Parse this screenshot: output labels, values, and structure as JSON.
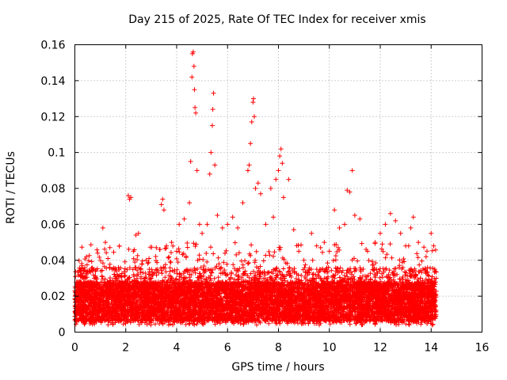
{
  "chart_data": {
    "type": "scatter",
    "title": "Day 215 of 2025, Rate Of TEC Index for receiver xmis",
    "xlabel": "GPS time / hours",
    "ylabel": "ROTI / TECUs",
    "xlim": [
      0,
      16
    ],
    "ylim": [
      0,
      0.16
    ],
    "x_ticks": [
      "0",
      "2",
      "4",
      "6",
      "8",
      "10",
      "12",
      "14",
      "16"
    ],
    "y_ticks": [
      "0",
      "0.02",
      "0.04",
      "0.06",
      "0.08",
      "0.1",
      "0.12",
      "0.14",
      "0.16"
    ],
    "grid": true,
    "marker": "+",
    "series_color": "#ff0000",
    "series": [
      {
        "name": "ROTI",
        "points": [
          [
            0.1,
            0.012
          ],
          [
            0.2,
            0.018
          ],
          [
            0.3,
            0.025
          ],
          [
            0.4,
            0.014
          ],
          [
            0.5,
            0.02
          ],
          [
            0.6,
            0.016
          ],
          [
            0.8,
            0.022
          ],
          [
            1.0,
            0.015
          ],
          [
            1.1,
            0.058
          ],
          [
            1.2,
            0.05
          ],
          [
            1.3,
            0.041
          ],
          [
            1.4,
            0.028
          ],
          [
            1.6,
            0.03
          ],
          [
            1.8,
            0.019
          ],
          [
            2.0,
            0.024
          ],
          [
            2.1,
            0.076
          ],
          [
            2.15,
            0.074
          ],
          [
            2.2,
            0.075
          ],
          [
            2.3,
            0.045
          ],
          [
            2.4,
            0.054
          ],
          [
            2.5,
            0.055
          ],
          [
            2.6,
            0.035
          ],
          [
            2.8,
            0.04
          ],
          [
            3.0,
            0.03
          ],
          [
            3.2,
            0.047
          ],
          [
            3.4,
            0.071
          ],
          [
            3.45,
            0.074
          ],
          [
            3.5,
            0.068
          ],
          [
            3.6,
            0.048
          ],
          [
            3.8,
            0.05
          ],
          [
            4.0,
            0.045
          ],
          [
            4.1,
            0.06
          ],
          [
            4.3,
            0.063
          ],
          [
            4.5,
            0.072
          ],
          [
            4.55,
            0.095
          ],
          [
            4.6,
            0.142
          ],
          [
            4.62,
            0.155
          ],
          [
            4.65,
            0.156
          ],
          [
            4.68,
            0.148
          ],
          [
            4.7,
            0.135
          ],
          [
            4.72,
            0.125
          ],
          [
            4.75,
            0.122
          ],
          [
            4.8,
            0.09
          ],
          [
            4.9,
            0.06
          ],
          [
            5.0,
            0.055
          ],
          [
            5.2,
            0.06
          ],
          [
            5.3,
            0.088
          ],
          [
            5.35,
            0.1
          ],
          [
            5.4,
            0.115
          ],
          [
            5.42,
            0.124
          ],
          [
            5.45,
            0.133
          ],
          [
            5.5,
            0.093
          ],
          [
            5.6,
            0.065
          ],
          [
            5.8,
            0.058
          ],
          [
            6.0,
            0.06
          ],
          [
            6.2,
            0.064
          ],
          [
            6.4,
            0.058
          ],
          [
            6.6,
            0.072
          ],
          [
            6.8,
            0.09
          ],
          [
            6.85,
            0.093
          ],
          [
            6.9,
            0.105
          ],
          [
            6.95,
            0.117
          ],
          [
            7.0,
            0.128
          ],
          [
            7.02,
            0.13
          ],
          [
            7.05,
            0.12
          ],
          [
            7.1,
            0.08
          ],
          [
            7.2,
            0.083
          ],
          [
            7.3,
            0.077
          ],
          [
            7.5,
            0.06
          ],
          [
            7.7,
            0.08
          ],
          [
            7.8,
            0.064
          ],
          [
            7.9,
            0.085
          ],
          [
            8.0,
            0.09
          ],
          [
            8.05,
            0.098
          ],
          [
            8.1,
            0.102
          ],
          [
            8.15,
            0.094
          ],
          [
            8.2,
            0.075
          ],
          [
            8.4,
            0.085
          ],
          [
            8.6,
            0.057
          ],
          [
            8.8,
            0.045
          ],
          [
            9.0,
            0.04
          ],
          [
            9.3,
            0.055
          ],
          [
            9.5,
            0.048
          ],
          [
            9.8,
            0.05
          ],
          [
            10.0,
            0.045
          ],
          [
            10.2,
            0.068
          ],
          [
            10.4,
            0.058
          ],
          [
            10.6,
            0.06
          ],
          [
            10.7,
            0.079
          ],
          [
            10.8,
            0.078
          ],
          [
            10.9,
            0.09
          ],
          [
            11.0,
            0.065
          ],
          [
            11.2,
            0.063
          ],
          [
            11.5,
            0.045
          ],
          [
            11.8,
            0.05
          ],
          [
            12.0,
            0.055
          ],
          [
            12.2,
            0.06
          ],
          [
            12.4,
            0.066
          ],
          [
            12.6,
            0.062
          ],
          [
            12.8,
            0.055
          ],
          [
            13.0,
            0.048
          ],
          [
            13.2,
            0.058
          ],
          [
            13.3,
            0.064
          ],
          [
            13.5,
            0.05
          ],
          [
            13.8,
            0.042
          ],
          [
            14.0,
            0.055
          ],
          [
            14.1,
            0.048
          ],
          [
            14.2,
            0.03
          ]
        ]
      }
    ]
  }
}
